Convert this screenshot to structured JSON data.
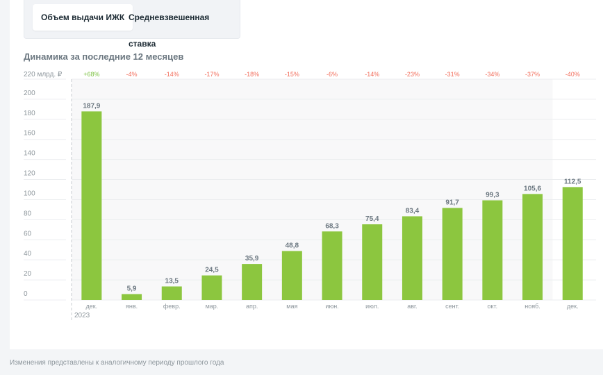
{
  "tabs": [
    {
      "label": "Объем выдачи ИЖК",
      "active": true
    },
    {
      "label": "Средневзвешенная ставка",
      "active": false
    }
  ],
  "subtitle": "Динамика за последние 12 месяцев",
  "footnote": "Изменения представлены к аналогичному периоду прошлого года",
  "colors": {
    "bar": "#8cc63f",
    "positive": "#7cc243",
    "negative": "#f26d5b",
    "text": "#6b7780"
  },
  "chart_data": {
    "type": "bar",
    "title": "",
    "ylabel": "220 млрд. ₽",
    "ylim": [
      0,
      220
    ],
    "yticks": [
      0,
      20,
      40,
      60,
      80,
      100,
      120,
      140,
      160,
      180,
      200
    ],
    "grid": true,
    "categories": [
      "дек.",
      "янв.",
      "февр.",
      "мар.",
      "апр.",
      "мая",
      "июн.",
      "июл.",
      "авг.",
      "сент.",
      "окт.",
      "нояб.",
      "дек."
    ],
    "year_label": "2023",
    "values": [
      187.9,
      5.9,
      13.5,
      24.5,
      35.9,
      48.8,
      68.3,
      75.4,
      83.4,
      91.7,
      99.3,
      105.6,
      112.5
    ],
    "value_labels": [
      "187,9",
      "5,9",
      "13,5",
      "24,5",
      "35,9",
      "48,8",
      "68,3",
      "75,4",
      "83,4",
      "91,7",
      "99,3",
      "105,6",
      "112,5"
    ],
    "changes": [
      "+68%",
      "-4%",
      "-14%",
      "-17%",
      "-18%",
      "-15%",
      "-6%",
      "-14%",
      "-23%",
      "-31%",
      "-34%",
      "-37%",
      "-40%"
    ]
  }
}
